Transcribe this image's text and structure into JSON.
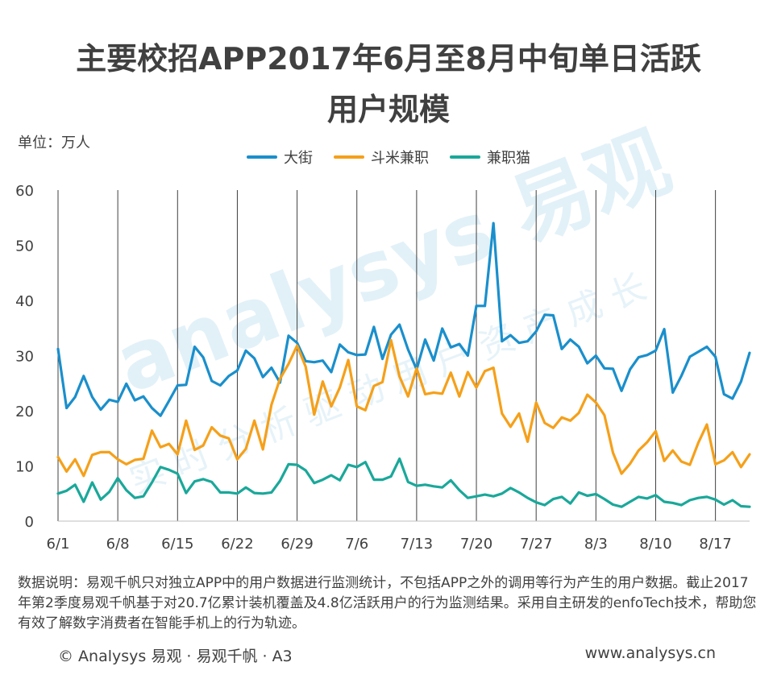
{
  "title_line1": "主要校招APP2017年6月至8月中旬单日活跃",
  "title_line2": "用户规模",
  "unit": "单位：万人",
  "watermark": {
    "main": "analysys 易观",
    "sub": "实时分析驱动用户资产成长"
  },
  "colors": {
    "dajie": "#1a8fcc",
    "doumi": "#f5a01a",
    "jianzhimao": "#1aa89a",
    "grid": "#404040"
  },
  "chart_data": {
    "type": "line",
    "title": "主要校招APP2017年6月至8月中旬单日活跃用户规模",
    "ylabel": "单位：万人",
    "ylim": [
      0,
      60
    ],
    "yticks": [
      0,
      10,
      20,
      30,
      40,
      50,
      60
    ],
    "xticks": [
      {
        "index": 0,
        "label": "6/1"
      },
      {
        "index": 7,
        "label": "6/8"
      },
      {
        "index": 14,
        "label": "6/15"
      },
      {
        "index": 21,
        "label": "6/22"
      },
      {
        "index": 28,
        "label": "6/29"
      },
      {
        "index": 35,
        "label": "7/6"
      },
      {
        "index": 42,
        "label": "7/13"
      },
      {
        "index": 49,
        "label": "7/20"
      },
      {
        "index": 56,
        "label": "7/27"
      },
      {
        "index": 63,
        "label": "8/3"
      },
      {
        "index": 70,
        "label": "8/10"
      },
      {
        "index": 77,
        "label": "8/17"
      }
    ],
    "legend_position": "top-center",
    "series": [
      {
        "name": "大街",
        "color": "#1a8fcc",
        "values": [
          31.2,
          20.5,
          22.5,
          26.3,
          22.5,
          20.2,
          22.0,
          21.6,
          24.9,
          21.9,
          22.6,
          20.5,
          19.1,
          21.8,
          24.6,
          24.7,
          31.6,
          29.7,
          25.4,
          24.6,
          26.3,
          27.3,
          30.9,
          29.5,
          26.1,
          27.8,
          25.1,
          33.6,
          32.3,
          29.0,
          28.8,
          29.1,
          27.0,
          32.0,
          30.6,
          30.1,
          30.2,
          35.2,
          29.4,
          33.8,
          35.6,
          31.1,
          27.5,
          32.9,
          29.1,
          34.9,
          31.5,
          32.1,
          30.0,
          39.0,
          39.0,
          54.0,
          32.6,
          33.7,
          32.3,
          32.6,
          34.4,
          37.4,
          37.3,
          31.2,
          32.9,
          31.6,
          28.6,
          30.0,
          27.7,
          27.6,
          23.6,
          27.5,
          29.7,
          30.1,
          30.9,
          34.8,
          23.3,
          26.3,
          29.8,
          30.7,
          31.6,
          29.8,
          23.0,
          22.2,
          25.3,
          30.5
        ]
      },
      {
        "name": "斗米兼职",
        "color": "#f5a01a",
        "values": [
          11.6,
          9.0,
          11.2,
          8.2,
          12.0,
          12.5,
          12.5,
          11.2,
          10.3,
          11.1,
          11.3,
          16.4,
          13.4,
          14.0,
          12.1,
          18.2,
          12.9,
          13.7,
          17.0,
          15.5,
          15.0,
          11.2,
          13.1,
          18.2,
          13.0,
          21.1,
          25.8,
          28.5,
          31.8,
          28.0,
          19.3,
          25.3,
          20.8,
          24.2,
          29.2,
          20.8,
          20.1,
          24.5,
          25.2,
          32.8,
          26.2,
          22.6,
          27.7,
          23.0,
          23.3,
          23.1,
          26.9,
          22.6,
          27.0,
          24.2,
          27.2,
          27.8,
          19.5,
          17.1,
          19.5,
          14.4,
          21.5,
          17.8,
          16.9,
          18.8,
          18.2,
          19.6,
          22.9,
          21.5,
          19.2,
          12.4,
          8.6,
          10.4,
          12.8,
          14.3,
          16.3,
          10.9,
          12.8,
          10.8,
          10.2,
          14.2,
          17.5,
          10.3,
          11.0,
          12.5,
          9.8,
          12.1
        ]
      },
      {
        "name": "兼职猫",
        "color": "#1aa89a",
        "values": [
          5.0,
          5.5,
          6.6,
          3.5,
          7.0,
          3.9,
          5.3,
          7.8,
          5.6,
          4.2,
          4.5,
          7.0,
          9.8,
          9.3,
          8.6,
          5.1,
          7.2,
          7.6,
          7.1,
          5.2,
          5.2,
          5.0,
          6.1,
          5.1,
          5.0,
          5.2,
          7.3,
          10.3,
          10.2,
          9.2,
          6.9,
          7.5,
          8.3,
          7.4,
          10.2,
          9.8,
          10.7,
          7.5,
          7.5,
          8.1,
          11.3,
          7.1,
          6.4,
          6.6,
          6.3,
          6.1,
          7.4,
          5.6,
          4.2,
          4.5,
          4.8,
          4.5,
          5.0,
          6.0,
          5.2,
          4.2,
          3.4,
          2.9,
          4.0,
          4.4,
          3.2,
          5.2,
          4.6,
          4.9,
          4.0,
          3.0,
          2.6,
          3.5,
          4.4,
          4.1,
          4.7,
          3.5,
          3.3,
          2.9,
          3.8,
          4.2,
          4.4,
          3.9,
          3.0,
          3.8,
          2.7,
          2.6
        ]
      }
    ]
  },
  "note": "数据说明：易观千帆只对独立APP中的用户数据进行监测统计，不包括APP之外的调用等行为产生的用户数据。截止2017年第2季度易观千帆基于对20.7亿累计装机覆盖及4.8亿活跃用户的行为监测结果。采用自主研发的enfoTech技术，帮助您有效了解数字消费者在智能手机上的行为轨迹。",
  "footer_left": "© Analysys 易观 · 易观千帆 · A3",
  "footer_right": "www.analysys.cn"
}
